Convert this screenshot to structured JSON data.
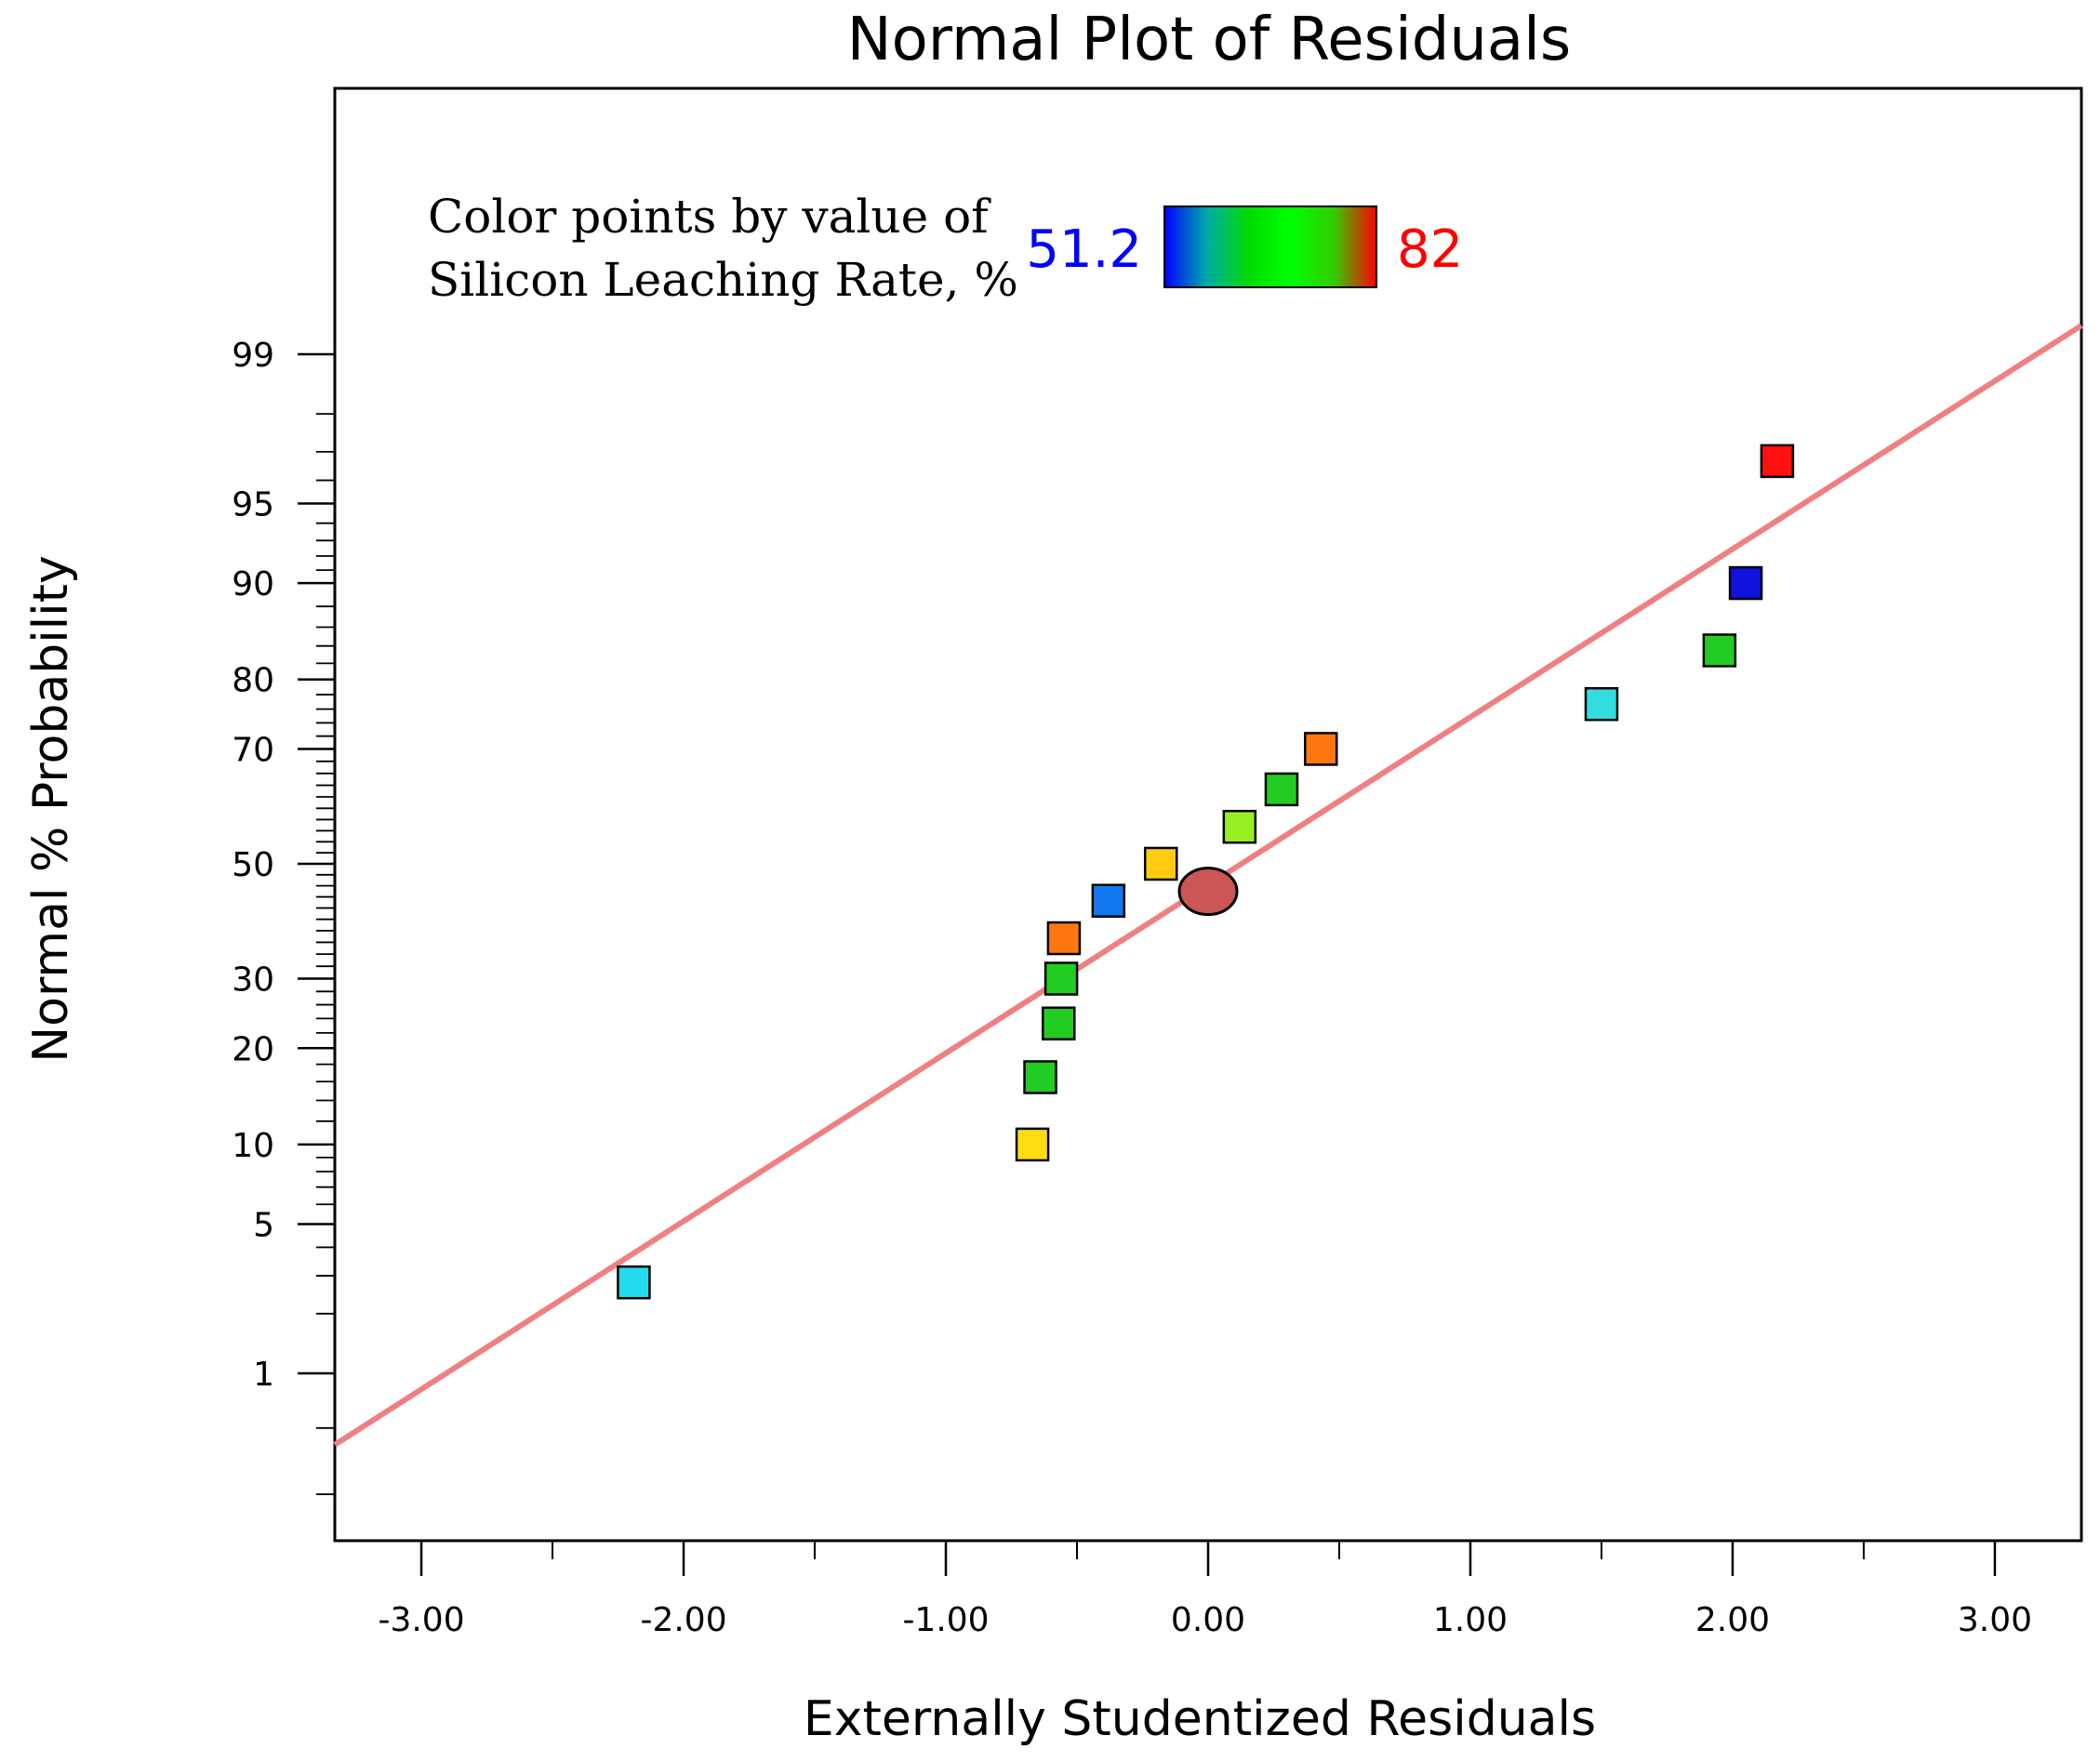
{
  "chart_data": {
    "type": "scatter",
    "title": "Normal Plot of Residuals",
    "xlabel": "Externally Studentized Residuals",
    "ylabel": "Normal % Probability",
    "xlim": [
      -3.33,
      3.33
    ],
    "x_ticks": [
      -3.0,
      -2.0,
      -1.0,
      0.0,
      1.0,
      2.0,
      3.0
    ],
    "x_tick_labels": [
      "-3.00",
      "-2.00",
      "-1.00",
      "0.00",
      "1.00",
      "2.00",
      "3.00"
    ],
    "y_scale": "normal-probability",
    "ylim": [
      0.1,
      99.98
    ],
    "y_ticks": [
      1,
      5,
      10,
      20,
      30,
      50,
      70,
      80,
      90,
      95,
      99
    ],
    "y_tick_labels": [
      "1",
      "5",
      "10",
      "20",
      "30",
      "50",
      "70",
      "80",
      "90",
      "95",
      "99"
    ],
    "legend": {
      "line1": "Color points by value of",
      "line2": "Silicon Leaching Rate, %",
      "min_label": "51.2",
      "max_label": "82",
      "min_color": "#0000ff",
      "max_color": "#ff0000",
      "gradient": [
        "#0000ff",
        "#00aaaa",
        "#00dd00",
        "#00ff00",
        "#33cc00",
        "#ff0000"
      ],
      "placement": "top-left"
    },
    "reference_line": {
      "x": [
        -3.33,
        3.33
      ],
      "y": [
        0.4,
        99.3
      ],
      "color": "#f08080"
    },
    "points": [
      {
        "x": -2.19,
        "y": 2.8,
        "color": "#22ddee"
      },
      {
        "x": -0.67,
        "y": 10.0,
        "color": "#ffdd11"
      },
      {
        "x": -0.64,
        "y": 16.5,
        "color": "#22cc22"
      },
      {
        "x": -0.57,
        "y": 23.3,
        "color": "#22cc22"
      },
      {
        "x": -0.56,
        "y": 30.0,
        "color": "#22cc22"
      },
      {
        "x": -0.55,
        "y": 36.7,
        "color": "#ff7711"
      },
      {
        "x": -0.38,
        "y": 43.3,
        "color": "#1177ee"
      },
      {
        "x": -0.18,
        "y": 50.0,
        "color": "#ffcc11"
      },
      {
        "x": 0.12,
        "y": 56.7,
        "color": "#99ee22"
      },
      {
        "x": 0.28,
        "y": 63.3,
        "color": "#22cc22"
      },
      {
        "x": 0.43,
        "y": 70.0,
        "color": "#ff7711"
      },
      {
        "x": 1.5,
        "y": 76.7,
        "color": "#33dddd"
      },
      {
        "x": 1.95,
        "y": 83.5,
        "color": "#22cc22"
      },
      {
        "x": 2.05,
        "y": 90.0,
        "color": "#1111dd"
      },
      {
        "x": 2.17,
        "y": 96.7,
        "color": "#ff1111"
      }
    ],
    "highlight_point": {
      "x": 0.0,
      "y": 45.0,
      "color": "#cc5555"
    }
  }
}
